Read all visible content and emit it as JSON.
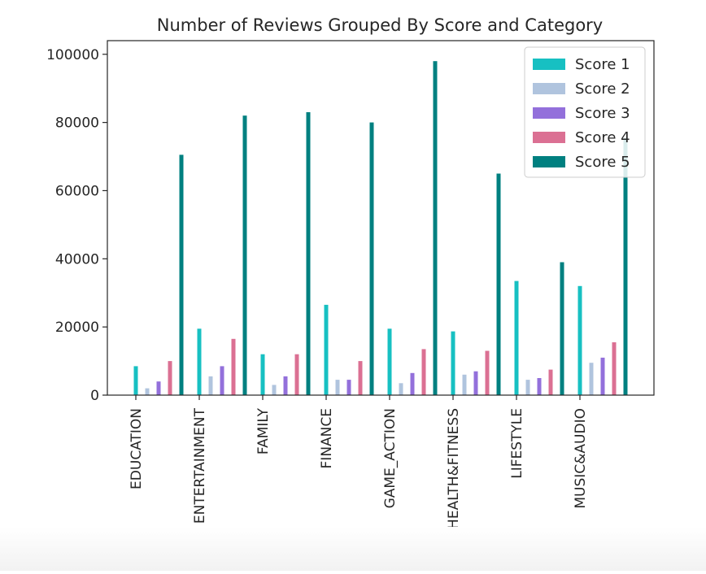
{
  "chart_data": {
    "type": "bar",
    "title": "Number of Reviews Grouped By Score and Category",
    "xlabel": "",
    "ylabel": "",
    "categories": [
      "EDUCATION",
      "ENTERTAINMENT",
      "FAMILY",
      "FINANCE",
      "GAME_ACTION",
      "HEALTH&FITNESS",
      "LIFESTYLE",
      "MUSIC&AUDIO"
    ],
    "ylim": [
      0,
      104000
    ],
    "yticks": [
      0,
      20000,
      40000,
      60000,
      80000,
      100000
    ],
    "grid": false,
    "legend_position": "top-right",
    "series": [
      {
        "name": "Score 1",
        "color": "#17c0c2",
        "values": [
          8500,
          19500,
          12000,
          26500,
          19500,
          18700,
          33500,
          32000
        ]
      },
      {
        "name": "Score 2",
        "color": "#b0c4de",
        "values": [
          2000,
          5500,
          3000,
          4500,
          3500,
          6000,
          4500,
          9500
        ]
      },
      {
        "name": "Score 3",
        "color": "#9370db",
        "values": [
          4000,
          8500,
          5500,
          4500,
          6500,
          7000,
          5000,
          11000
        ]
      },
      {
        "name": "Score 4",
        "color": "#db7093",
        "values": [
          10000,
          16500,
          12000,
          10000,
          13500,
          13000,
          7500,
          15500
        ]
      },
      {
        "name": "Score 5",
        "color": "#008080",
        "values": [
          70500,
          82000,
          83000,
          80000,
          98000,
          65000,
          39000,
          75500
        ]
      }
    ]
  }
}
